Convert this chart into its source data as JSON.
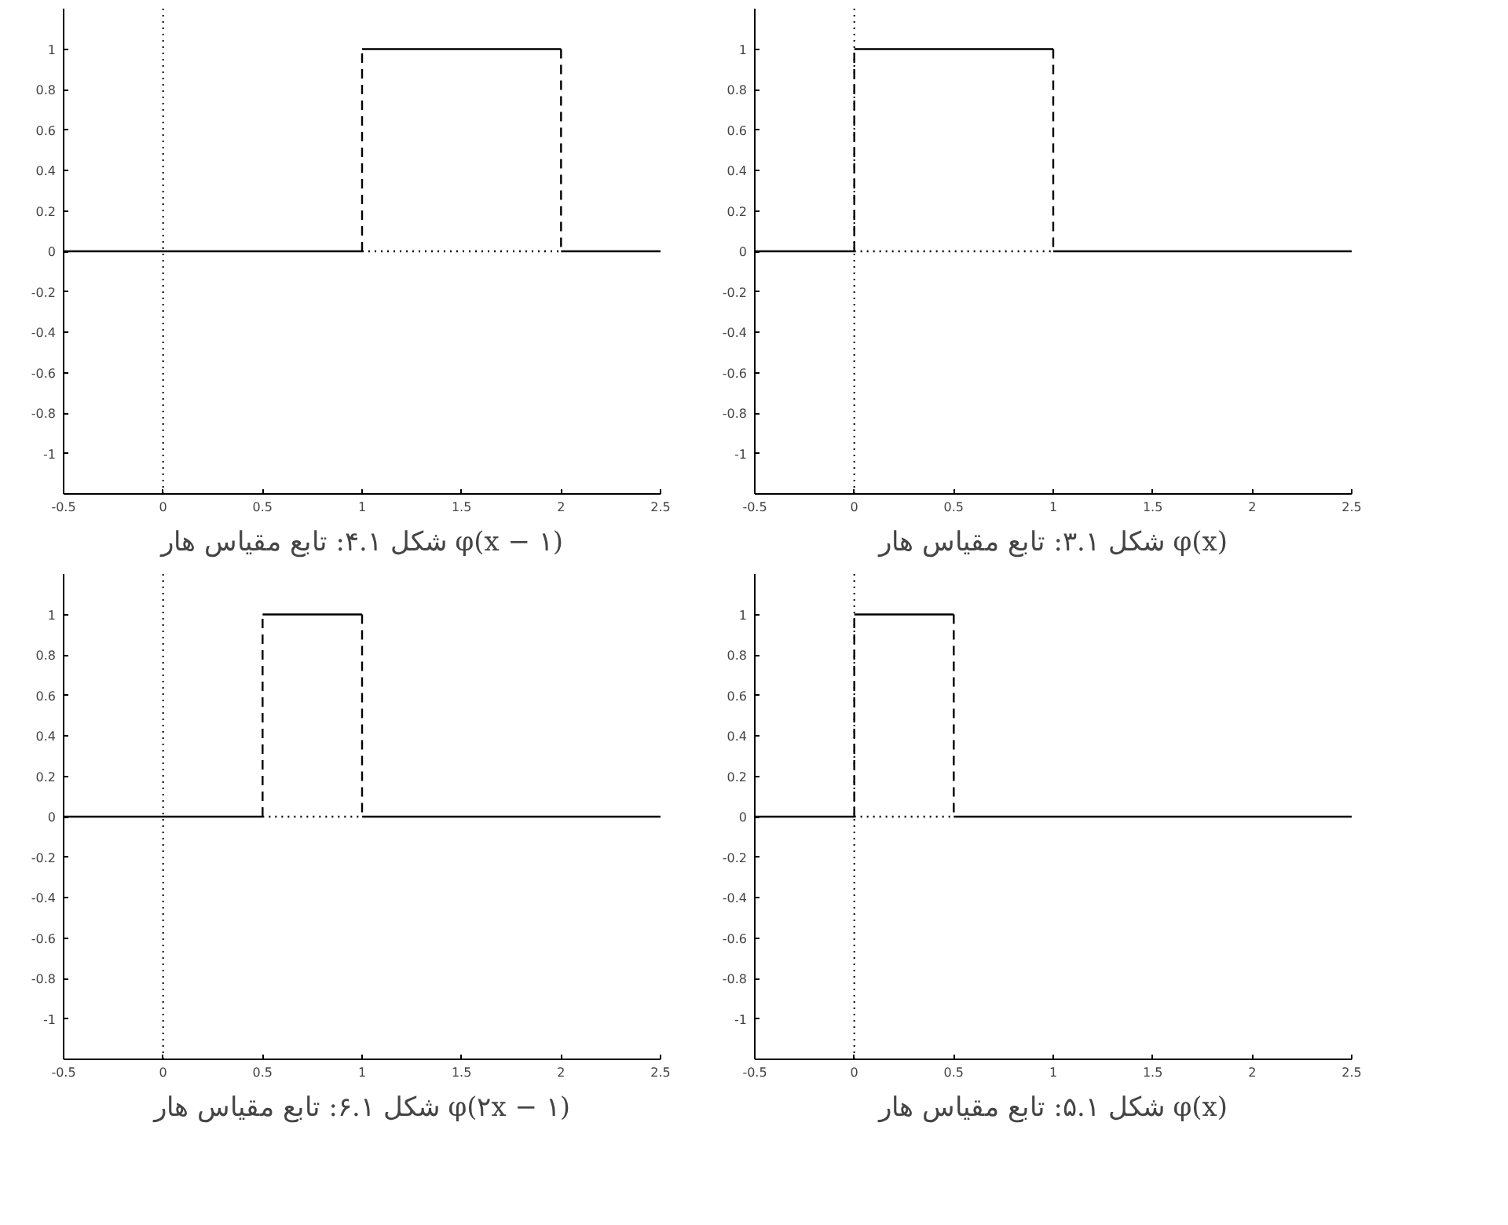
{
  "chart_data": [
    {
      "type": "line",
      "title": "شکل ۳.۱: تابع مقیاس هار φ(x)",
      "xlim": [
        -0.5,
        2.5
      ],
      "ylim": [
        -1.2,
        1.2
      ],
      "xticks": [
        -0.5,
        0,
        0.5,
        1,
        1.5,
        2,
        2.5
      ],
      "yticks": [
        -1,
        -0.8,
        -0.6,
        -0.4,
        -0.2,
        0,
        0.2,
        0.4,
        0.6,
        0.8,
        1
      ],
      "grid": false,
      "ref_lines": [
        {
          "axis": "x",
          "value": 0,
          "line_style": "dotted",
          "color": "#000000"
        }
      ],
      "series": [
        {
          "line_style": "solid",
          "color": "#000000",
          "x": [
            -0.5,
            0
          ],
          "values": [
            0,
            0
          ]
        },
        {
          "line_style": "solid",
          "color": "#000000",
          "x": [
            0,
            1
          ],
          "values": [
            1,
            1
          ]
        },
        {
          "line_style": "solid",
          "color": "#000000",
          "x": [
            1,
            2.5
          ],
          "values": [
            0,
            0
          ]
        },
        {
          "line_style": "dashed",
          "color": "#000000",
          "x": [
            0,
            0
          ],
          "values": [
            0,
            1
          ]
        },
        {
          "line_style": "dashed",
          "color": "#000000",
          "x": [
            1,
            1
          ],
          "values": [
            1,
            0
          ]
        },
        {
          "line_style": "dotted",
          "color": "#000000",
          "x": [
            0,
            1
          ],
          "values": [
            0,
            0
          ]
        }
      ]
    },
    {
      "type": "line",
      "title": "شکل ۴.۱: تابع مقیاس هار φ(x − ۱)",
      "xlim": [
        -0.5,
        2.5
      ],
      "ylim": [
        -1.2,
        1.2
      ],
      "xticks": [
        -0.5,
        0,
        0.5,
        1,
        1.5,
        2,
        2.5
      ],
      "yticks": [
        -1,
        -0.8,
        -0.6,
        -0.4,
        -0.2,
        0,
        0.2,
        0.4,
        0.6,
        0.8,
        1
      ],
      "grid": false,
      "ref_lines": [
        {
          "axis": "x",
          "value": 0,
          "line_style": "dotted",
          "color": "#000000"
        }
      ],
      "series": [
        {
          "line_style": "solid",
          "color": "#000000",
          "x": [
            -0.5,
            1
          ],
          "values": [
            0,
            0
          ]
        },
        {
          "line_style": "solid",
          "color": "#000000",
          "x": [
            1,
            2
          ],
          "values": [
            1,
            1
          ]
        },
        {
          "line_style": "solid",
          "color": "#000000",
          "x": [
            2,
            2.5
          ],
          "values": [
            0,
            0
          ]
        },
        {
          "line_style": "dashed",
          "color": "#000000",
          "x": [
            1,
            1
          ],
          "values": [
            0,
            1
          ]
        },
        {
          "line_style": "dashed",
          "color": "#000000",
          "x": [
            2,
            2
          ],
          "values": [
            1,
            0
          ]
        },
        {
          "line_style": "dotted",
          "color": "#000000",
          "x": [
            1,
            2
          ],
          "values": [
            0,
            0
          ]
        }
      ]
    },
    {
      "type": "line",
      "title": "شکل ۵.۱: تابع مقیاس هار φ(x)",
      "xlim": [
        -0.5,
        2.5
      ],
      "ylim": [
        -1.2,
        1.2
      ],
      "xticks": [
        -0.5,
        0,
        0.5,
        1,
        1.5,
        2,
        2.5
      ],
      "yticks": [
        -1,
        -0.8,
        -0.6,
        -0.4,
        -0.2,
        0,
        0.2,
        0.4,
        0.6,
        0.8,
        1
      ],
      "grid": false,
      "ref_lines": [
        {
          "axis": "x",
          "value": 0,
          "line_style": "dotted",
          "color": "#000000"
        }
      ],
      "series": [
        {
          "line_style": "solid",
          "color": "#000000",
          "x": [
            -0.5,
            0
          ],
          "values": [
            0,
            0
          ]
        },
        {
          "line_style": "solid",
          "color": "#000000",
          "x": [
            0,
            0.5
          ],
          "values": [
            1,
            1
          ]
        },
        {
          "line_style": "solid",
          "color": "#000000",
          "x": [
            0.5,
            2.5
          ],
          "values": [
            0,
            0
          ]
        },
        {
          "line_style": "dashed",
          "color": "#000000",
          "x": [
            0,
            0
          ],
          "values": [
            0,
            1
          ]
        },
        {
          "line_style": "dashed",
          "color": "#000000",
          "x": [
            0.5,
            0.5
          ],
          "values": [
            1,
            0
          ]
        },
        {
          "line_style": "dotted",
          "color": "#000000",
          "x": [
            0,
            0.5
          ],
          "values": [
            0,
            0
          ]
        }
      ]
    },
    {
      "type": "line",
      "title": "شکل ۶.۱: تابع مقیاس هار φ(۲x − ۱)",
      "xlim": [
        -0.5,
        2.5
      ],
      "ylim": [
        -1.2,
        1.2
      ],
      "xticks": [
        -0.5,
        0,
        0.5,
        1,
        1.5,
        2,
        2.5
      ],
      "yticks": [
        -1,
        -0.8,
        -0.6,
        -0.4,
        -0.2,
        0,
        0.2,
        0.4,
        0.6,
        0.8,
        1
      ],
      "grid": false,
      "ref_lines": [
        {
          "axis": "x",
          "value": 0,
          "line_style": "dotted",
          "color": "#000000"
        }
      ],
      "series": [
        {
          "line_style": "solid",
          "color": "#000000",
          "x": [
            -0.5,
            0.5
          ],
          "values": [
            0,
            0
          ]
        },
        {
          "line_style": "solid",
          "color": "#000000",
          "x": [
            0.5,
            1
          ],
          "values": [
            1,
            1
          ]
        },
        {
          "line_style": "solid",
          "color": "#000000",
          "x": [
            1,
            2.5
          ],
          "values": [
            0,
            0
          ]
        },
        {
          "line_style": "dashed",
          "color": "#000000",
          "x": [
            0.5,
            0.5
          ],
          "values": [
            0,
            1
          ]
        },
        {
          "line_style": "dashed",
          "color": "#000000",
          "x": [
            1,
            1
          ],
          "values": [
            1,
            0
          ]
        },
        {
          "line_style": "dotted",
          "color": "#000000",
          "x": [
            0.5,
            1
          ],
          "values": [
            0,
            0
          ]
        }
      ]
    }
  ]
}
